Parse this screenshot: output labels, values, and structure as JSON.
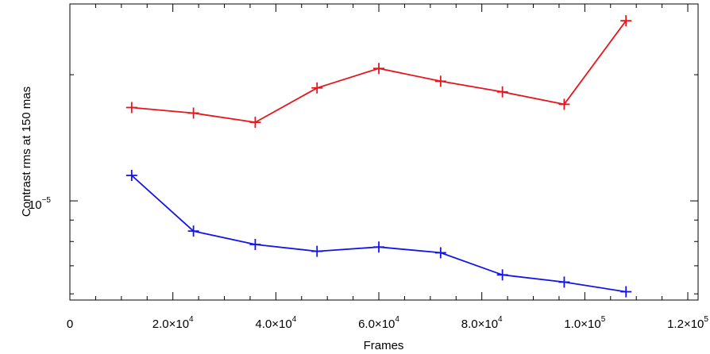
{
  "chart_data": {
    "type": "line",
    "xlabel": "Frames",
    "ylabel": "Contrast rms at 150 mas",
    "xlim": [
      0,
      122000
    ],
    "ylim": [
      5.8e-06,
      2.95e-05
    ],
    "y_scale": "log",
    "grid": false,
    "x_ticks": [
      {
        "value": 0,
        "label": "0"
      },
      {
        "value": 20000,
        "label": "2.0×10",
        "exp": "4"
      },
      {
        "value": 40000,
        "label": "4.0×10",
        "exp": "4"
      },
      {
        "value": 60000,
        "label": "6.0×10",
        "exp": "4"
      },
      {
        "value": 80000,
        "label": "8.0×10",
        "exp": "4"
      },
      {
        "value": 100000,
        "label": "1.0×10",
        "exp": "5"
      },
      {
        "value": 120000,
        "label": "1.2×10",
        "exp": "5"
      }
    ],
    "y_ticks": [
      {
        "value": 1e-05,
        "label": "10",
        "exp": "−5"
      }
    ],
    "series": [
      {
        "color": "#e8141c",
        "x": [
          12000,
          24000,
          36000,
          48000,
          60000,
          72000,
          84000,
          96000,
          108000
        ],
        "y": [
          1.67e-05,
          1.62e-05,
          1.54e-05,
          1.86e-05,
          2.07e-05,
          1.93e-05,
          1.82e-05,
          1.7e-05,
          2.69e-05
        ]
      },
      {
        "color": "#1414e8",
        "x": [
          12000,
          24000,
          36000,
          48000,
          60000,
          72000,
          84000,
          96000,
          108000
        ],
        "y": [
          1.15e-05,
          8.47e-06,
          7.87e-06,
          7.58e-06,
          7.76e-06,
          7.52e-06,
          6.66e-06,
          6.4e-06,
          6.07e-06
        ]
      }
    ]
  }
}
